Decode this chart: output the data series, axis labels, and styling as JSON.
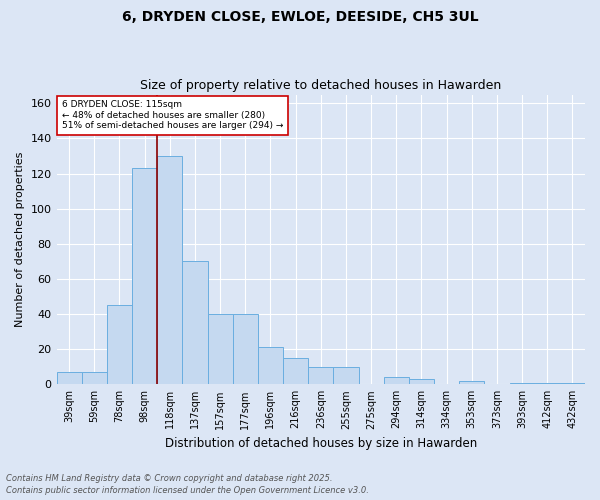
{
  "title1": "6, DRYDEN CLOSE, EWLOE, DEESIDE, CH5 3UL",
  "title2": "Size of property relative to detached houses in Hawarden",
  "xlabel": "Distribution of detached houses by size in Hawarden",
  "ylabel": "Number of detached properties",
  "categories": [
    "39sqm",
    "59sqm",
    "78sqm",
    "98sqm",
    "118sqm",
    "137sqm",
    "157sqm",
    "177sqm",
    "196sqm",
    "216sqm",
    "236sqm",
    "255sqm",
    "275sqm",
    "294sqm",
    "314sqm",
    "334sqm",
    "353sqm",
    "373sqm",
    "393sqm",
    "412sqm",
    "432sqm"
  ],
  "values": [
    7,
    7,
    45,
    123,
    130,
    70,
    40,
    40,
    21,
    15,
    10,
    10,
    0,
    4,
    3,
    0,
    2,
    0,
    1,
    1,
    1
  ],
  "bar_color": "#c5d9f0",
  "bar_edge_color": "#6aaee0",
  "background_color": "#dce6f5",
  "grid_color": "#ffffff",
  "vline_color": "#8b0000",
  "vline_pos": 3.5,
  "annotation_text": "6 DRYDEN CLOSE: 115sqm\n← 48% of detached houses are smaller (280)\n51% of semi-detached houses are larger (294) →",
  "annotation_box_color": "#ffffff",
  "annotation_box_edge": "#cc0000",
  "footer1": "Contains HM Land Registry data © Crown copyright and database right 2025.",
  "footer2": "Contains public sector information licensed under the Open Government Licence v3.0.",
  "ylim": [
    0,
    165
  ],
  "yticks": [
    0,
    20,
    40,
    60,
    80,
    100,
    120,
    140,
    160
  ]
}
